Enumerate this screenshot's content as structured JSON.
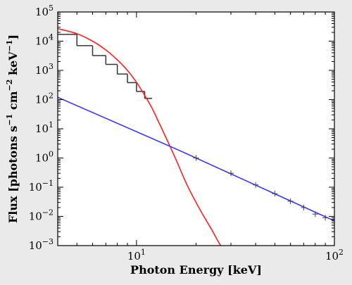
{
  "chart_data": {
    "type": "line",
    "xscale": "log",
    "yscale": "log",
    "xlim": [
      4.0,
      100
    ],
    "ylim": [
      0.001,
      100000
    ],
    "xlabel": "Photon Energy [keV]",
    "ylabel_parts": {
      "prefix": "Flux [photons s",
      "exp1": "−1",
      "mid1": " cm",
      "exp2": "−2",
      "mid2": " keV",
      "exp3": "−1",
      "suffix": "]"
    },
    "x_major_ticks": [
      {
        "value": 10,
        "base": "10",
        "exp": "1"
      },
      {
        "value": 100,
        "base": "10",
        "exp": "2"
      }
    ],
    "y_major_ticks": [
      {
        "value": 0.001,
        "base": "10",
        "exp": "−3"
      },
      {
        "value": 0.01,
        "base": "10",
        "exp": "−2"
      },
      {
        "value": 0.1,
        "base": "10",
        "exp": "−1"
      },
      {
        "value": 1,
        "base": "10",
        "exp": "0"
      },
      {
        "value": 10,
        "base": "10",
        "exp": "1"
      },
      {
        "value": 100,
        "base": "10",
        "exp": "2"
      },
      {
        "value": 1000,
        "base": "10",
        "exp": "3"
      },
      {
        "value": 10000,
        "base": "10",
        "exp": "4"
      },
      {
        "value": 100000,
        "base": "10",
        "exp": "5"
      }
    ],
    "series": [
      {
        "kind": "steps",
        "color": "#333333",
        "bins": [
          {
            "x0": 4.0,
            "x1": 5.0,
            "y": 17000
          },
          {
            "x0": 5.0,
            "x1": 6.0,
            "y": 7000
          },
          {
            "x0": 6.0,
            "x1": 7.0,
            "y": 3200
          },
          {
            "x0": 7.0,
            "x1": 8.0,
            "y": 1600
          },
          {
            "x0": 8.0,
            "x1": 9.0,
            "y": 750
          },
          {
            "x0": 9.0,
            "x1": 10.0,
            "y": 380
          },
          {
            "x0": 10.0,
            "x1": 11.0,
            "y": 190
          },
          {
            "x0": 11.0,
            "x1": 12.0,
            "y": 110
          }
        ]
      },
      {
        "kind": "line",
        "color": "#ff2020",
        "points": [
          [
            4.0,
            27000
          ],
          [
            5.0,
            18000
          ],
          [
            6.0,
            10000
          ],
          [
            7.0,
            5000
          ],
          [
            8.0,
            2300
          ],
          [
            9.0,
            1000
          ],
          [
            10.0,
            390
          ],
          [
            11.0,
            140
          ],
          [
            12.0,
            50
          ],
          [
            13.0,
            16
          ],
          [
            14.0,
            5.5
          ],
          [
            15.0,
            2.0
          ],
          [
            16.0,
            0.75
          ],
          [
            18.0,
            0.12
          ],
          [
            20.0,
            0.03
          ],
          [
            22.0,
            0.0095
          ],
          [
            24.0,
            0.0035
          ],
          [
            26.0,
            0.0013
          ],
          [
            27.0,
            0.00088
          ]
        ]
      },
      {
        "kind": "line",
        "color": "#3a3aff",
        "points": [
          [
            4.0,
            120
          ],
          [
            16.5,
            1.8
          ],
          [
            100,
            0.007
          ]
        ]
      },
      {
        "kind": "crosses",
        "color": "#444444",
        "points": [
          [
            20,
            1.0
          ],
          [
            30,
            0.3
          ],
          [
            40,
            0.12
          ],
          [
            50,
            0.06
          ],
          [
            60,
            0.033
          ],
          [
            70,
            0.02
          ],
          [
            80,
            0.012
          ],
          [
            90,
            0.009
          ]
        ]
      }
    ]
  }
}
